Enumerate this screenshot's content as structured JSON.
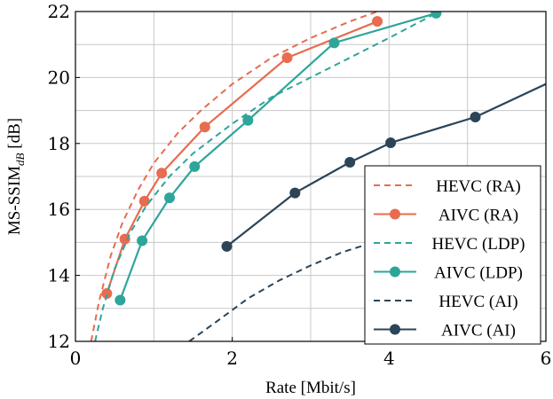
{
  "chart_data": {
    "type": "line",
    "xlabel": "Rate [Mbit/s]",
    "ylabel_main": "MS-SSIM",
    "ylabel_sub": "dB",
    "ylabel_suffix": " [dB]",
    "xlim": [
      0,
      6
    ],
    "ylim": [
      12,
      22
    ],
    "xticks": [
      0,
      2,
      4,
      6
    ],
    "yticks": [
      12,
      14,
      16,
      18,
      20,
      22
    ],
    "grid": true,
    "legend_position": "bottom-right",
    "colors": {
      "RA": "#e86c4f",
      "LDP": "#2ea59a",
      "AI": "#2b4458"
    },
    "series": [
      {
        "name": "HEVC (RA)",
        "group": "RA",
        "style": "dashed",
        "x": [
          0.2,
          0.3,
          0.45,
          0.6,
          0.8,
          1.0,
          1.3,
          1.6,
          2.0,
          2.5,
          3.0,
          3.5,
          3.85
        ],
        "y": [
          12.0,
          13.2,
          14.6,
          15.6,
          16.6,
          17.4,
          18.3,
          19.0,
          19.8,
          20.6,
          21.2,
          21.7,
          22.0
        ]
      },
      {
        "name": "AIVC (RA)",
        "group": "RA",
        "style": "solid-marker",
        "x": [
          0.4,
          0.63,
          0.88,
          1.1,
          1.65,
          2.7,
          3.85
        ],
        "y": [
          13.45,
          15.1,
          16.25,
          17.1,
          18.5,
          20.6,
          21.7
        ]
      },
      {
        "name": "HEVC (LDP)",
        "group": "LDP",
        "style": "dashed",
        "x": [
          0.25,
          0.35,
          0.5,
          0.7,
          0.9,
          1.2,
          1.5,
          2.0,
          2.5,
          3.0,
          3.5,
          4.0,
          4.6
        ],
        "y": [
          12.0,
          13.0,
          14.2,
          15.3,
          16.1,
          17.0,
          17.7,
          18.6,
          19.4,
          20.0,
          20.6,
          21.2,
          21.95
        ]
      },
      {
        "name": "AIVC (LDP)",
        "group": "LDP",
        "style": "solid-marker",
        "x": [
          0.57,
          0.85,
          1.2,
          1.52,
          2.2,
          3.3,
          4.6
        ],
        "y": [
          13.25,
          15.05,
          16.35,
          17.3,
          18.7,
          21.05,
          21.95
        ]
      },
      {
        "name": "HEVC (AI)",
        "group": "AI",
        "style": "dashed",
        "x": [
          1.45,
          1.8,
          2.2,
          2.6,
          3.0,
          3.4,
          3.8,
          4.2
        ],
        "y": [
          12.0,
          12.6,
          13.3,
          13.85,
          14.3,
          14.7,
          15.0,
          15.3
        ]
      },
      {
        "name": "AIVC (AI)",
        "group": "AI",
        "style": "solid-marker",
        "x": [
          1.93,
          2.8,
          3.5,
          4.02,
          5.1,
          6.0
        ],
        "y": [
          14.88,
          16.5,
          17.43,
          18.02,
          18.8,
          19.8
        ],
        "marker_count": 5
      }
    ]
  }
}
